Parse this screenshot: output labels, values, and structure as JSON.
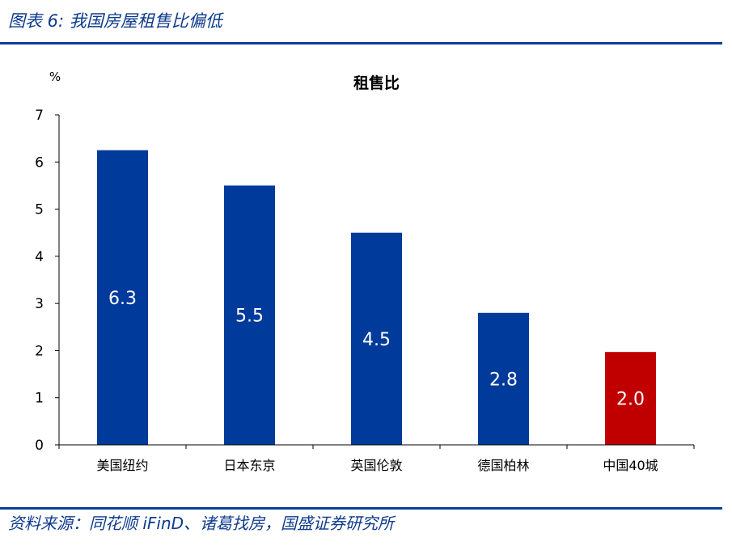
{
  "figure": {
    "title": "图表 6:  我国房屋租售比偏低",
    "source": "资料来源：同花顺 iFinD、诸葛找房，国盛证券研究所"
  },
  "chart_data": {
    "type": "bar",
    "title": "租售比",
    "ylabel": "%",
    "xlabel": "",
    "ylim": [
      0,
      7
    ],
    "yticks": [
      0,
      1,
      2,
      3,
      4,
      5,
      6,
      7
    ],
    "categories": [
      "美国纽约",
      "日本东京",
      "英国伦敦",
      "德国柏林",
      "中国40城"
    ],
    "values": [
      6.25,
      5.5,
      4.5,
      2.8,
      1.97
    ],
    "data_labels": [
      "6.3",
      "5.5",
      "4.5",
      "2.8",
      "2.0"
    ],
    "colors": [
      "#003a9b",
      "#003a9b",
      "#003a9b",
      "#003a9b",
      "#c00000"
    ],
    "grid": false,
    "legend": "none"
  }
}
